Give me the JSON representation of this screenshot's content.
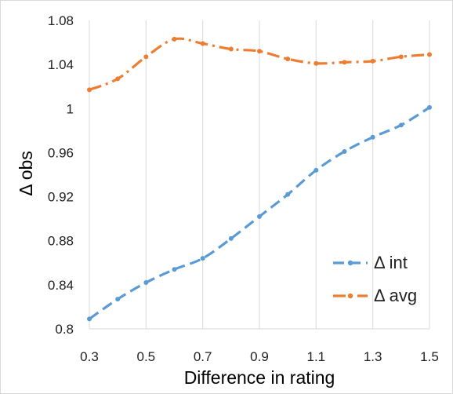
{
  "chart_data": {
    "type": "line",
    "title": "",
    "xlabel": "Difference in rating",
    "ylabel": "Δ obs",
    "xlim": [
      0.3,
      1.5
    ],
    "ylim": [
      0.8,
      1.08
    ],
    "x_ticks": [
      "0.3",
      "0.5",
      "0.7",
      "0.9",
      "1.1",
      "1.3",
      "1.5"
    ],
    "y_ticks": [
      "0.8",
      "0.84",
      "0.88",
      "0.92",
      "0.96",
      "1",
      "1.04",
      "1.08"
    ],
    "grid": "vertical",
    "legend_position": "bottom-right",
    "x": [
      0.3,
      0.4,
      0.5,
      0.6,
      0.7,
      0.8,
      0.9,
      1.0,
      1.1,
      1.2,
      1.3,
      1.4,
      1.5
    ],
    "series": [
      {
        "name": "Δ int",
        "color": "#5b9bd5",
        "dash": "dashed",
        "values": [
          0.809,
          0.827,
          0.842,
          0.854,
          0.864,
          0.882,
          0.902,
          0.922,
          0.944,
          0.961,
          0.974,
          0.985,
          1.001
        ]
      },
      {
        "name": "Δ avg",
        "color": "#ed7d31",
        "dash": "dash-dot",
        "values": [
          1.017,
          1.027,
          1.047,
          1.063,
          1.059,
          1.054,
          1.052,
          1.045,
          1.041,
          1.042,
          1.043,
          1.047,
          1.049
        ]
      }
    ]
  }
}
